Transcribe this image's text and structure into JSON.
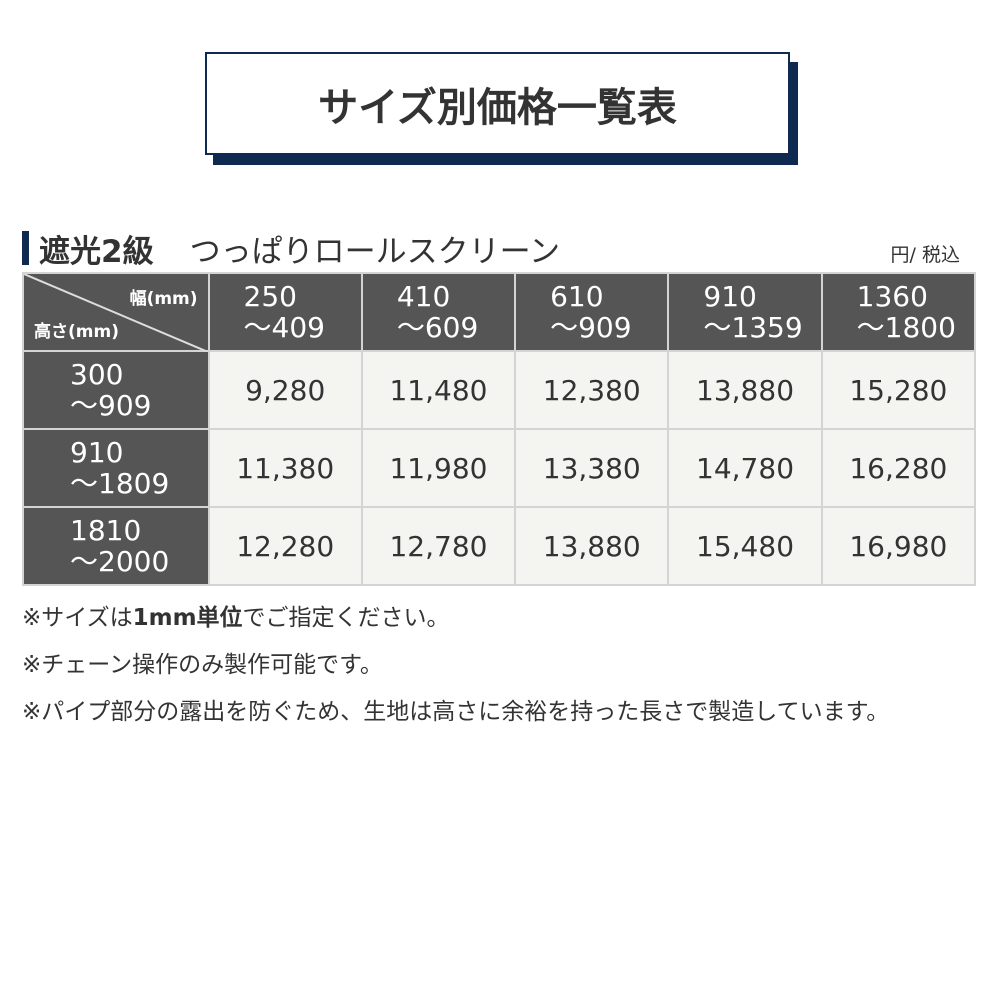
{
  "title": "サイズ別価格一覧表",
  "section": {
    "grade": "遮光2級",
    "product": "つっぱりロールスクリーン",
    "unit": "円/ 税込"
  },
  "table": {
    "corner_width": "幅(mm)",
    "corner_height": "高さ(mm)",
    "columns": [
      [
        "250",
        "～409"
      ],
      [
        "410",
        "～609"
      ],
      [
        "610",
        "～909"
      ],
      [
        "910",
        "～1359"
      ],
      [
        "1360",
        "～1800"
      ]
    ],
    "rows": [
      {
        "h": [
          "300",
          "～909"
        ],
        "prices": [
          "9,280",
          "11,480",
          "12,380",
          "13,880",
          "15,280"
        ]
      },
      {
        "h": [
          "910",
          "～1809"
        ],
        "prices": [
          "11,380",
          "11,980",
          "13,380",
          "14,780",
          "16,280"
        ]
      },
      {
        "h": [
          "1810",
          "～2000"
        ],
        "prices": [
          "12,280",
          "12,780",
          "13,880",
          "15,480",
          "16,980"
        ]
      }
    ]
  },
  "notes": {
    "n1_pre": "※サイズは",
    "n1_bold": "1mm単位",
    "n1_post": "でご指定ください。",
    "n2": "※チェーン操作のみ製作可能です。",
    "n3": "※パイプ部分の露出を防ぐため、生地は高さに余裕を持った長さで製造しています。"
  },
  "colors": {
    "navy": "#0f2a50",
    "header": "#555555",
    "cell": "#f4f4f0"
  }
}
